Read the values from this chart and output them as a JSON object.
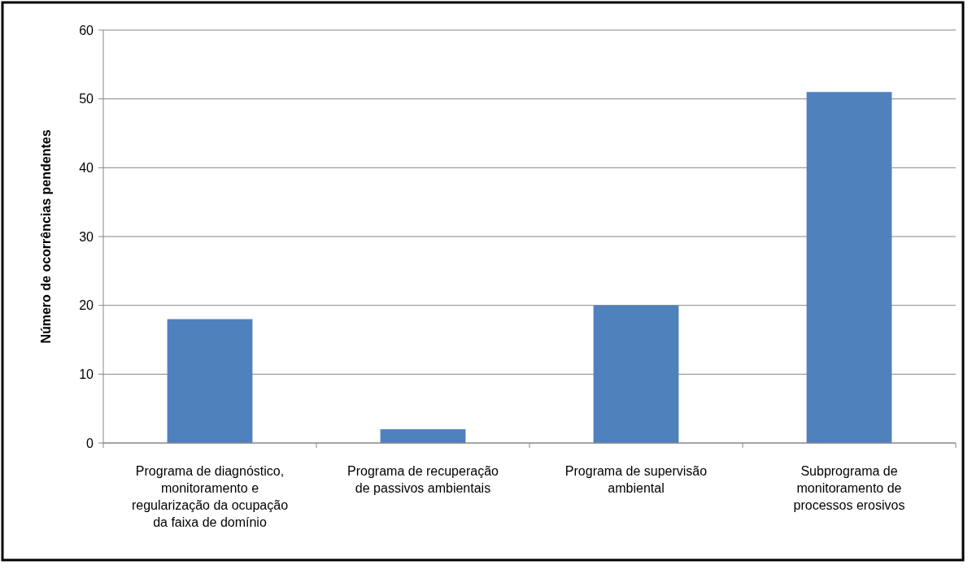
{
  "chart_data": {
    "type": "bar",
    "ylabel": "Número de ocorrências pendentes",
    "categories": [
      "Programa de diagnóstico, monitoramento e regularização da ocupação da faixa de domínio",
      "Programa de recuperação de passivos ambientais",
      "Programa de supervisão ambiental",
      "Subprograma de monitoramento de processos erosivos"
    ],
    "values": [
      18,
      2,
      20,
      51
    ],
    "color": "#4f81bd",
    "ylim": [
      0,
      60
    ],
    "yticks": [
      0,
      10,
      20,
      30,
      40,
      50,
      60
    ],
    "grid": "y"
  }
}
